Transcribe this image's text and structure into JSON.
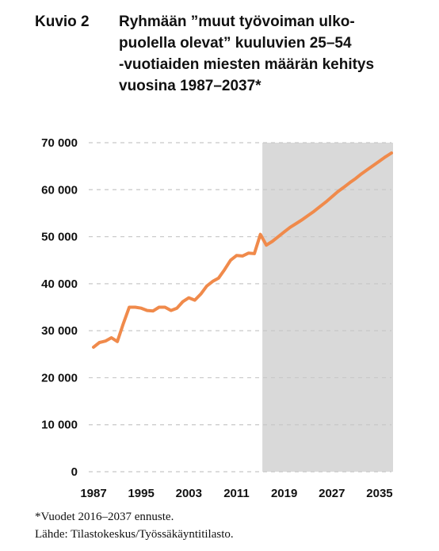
{
  "header": {
    "figure_label": "Kuvio 2",
    "title_lines": [
      "Ryhmään ”muut työvoiman ulko-",
      "puolella olevat” kuuluvien 25–54",
      "-vuotiaiden miesten määrän kehitys",
      "vuosina 1987–2037*"
    ]
  },
  "footer": {
    "note": "*Vuodet 2016–2037 ennuste.",
    "source": "Lähde: Tilastokeskus/Työssäkäyntitilasto."
  },
  "colors": {
    "line": "#f08a4b",
    "forecast_shade": "#d9d9d9",
    "gridline": "#c8c8c8",
    "text": "#111111"
  },
  "chart_data": {
    "type": "line",
    "title": "Ryhmään ”muut työvoiman ulkopuolella olevat” kuuluvien 25–54 -vuotiaiden miesten määrän kehitys vuosina 1987–2037*",
    "xlabel": "",
    "ylabel": "",
    "xlim": [
      1987,
      2037
    ],
    "ylim": [
      0,
      70000
    ],
    "x_ticks": [
      1987,
      1995,
      2003,
      2011,
      2019,
      2027,
      2035
    ],
    "y_ticks": [
      0,
      10000,
      20000,
      30000,
      40000,
      50000,
      60000,
      70000
    ],
    "y_tick_labels": [
      "0",
      "10 000",
      "20 000",
      "30 000",
      "40 000",
      "50 000",
      "60 000",
      "70 000"
    ],
    "grid": "horizontal dashed",
    "forecast_region": [
      2016,
      2037
    ],
    "series": [
      {
        "x": [
          1987,
          1988,
          1989,
          1990,
          1991,
          1992,
          1993,
          1994,
          1995,
          1996,
          1997,
          1998,
          1999,
          2000,
          2001,
          2002,
          2003,
          2004,
          2005,
          2006,
          2007,
          2008,
          2009,
          2010,
          2011,
          2012,
          2013,
          2014,
          2015,
          2016,
          2017,
          2018,
          2019,
          2020,
          2021,
          2022,
          2023,
          2024,
          2025,
          2026,
          2027,
          2028,
          2029,
          2030,
          2031,
          2032,
          2033,
          2034,
          2035,
          2036,
          2037
        ],
        "values": [
          26500,
          27500,
          27800,
          28500,
          27700,
          31500,
          35000,
          35000,
          34800,
          34300,
          34200,
          35000,
          35000,
          34300,
          34800,
          36200,
          37000,
          36500,
          37800,
          39500,
          40500,
          41200,
          43000,
          45000,
          46000,
          45900,
          46500,
          46400,
          50500,
          48200,
          49000,
          50000,
          51000,
          52000,
          52800,
          53600,
          54500,
          55400,
          56400,
          57400,
          58500,
          59600,
          60500,
          61500,
          62400,
          63400,
          64300,
          65200,
          66100,
          67000,
          67800
        ]
      }
    ]
  }
}
